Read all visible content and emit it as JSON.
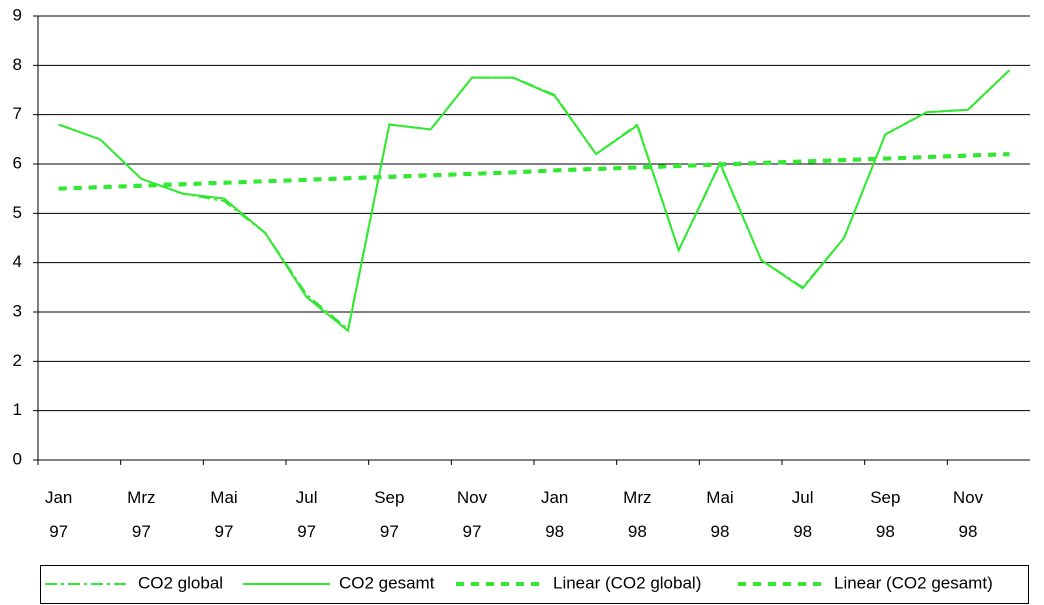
{
  "chart_data": {
    "type": "line",
    "categories": [
      "Jan 97",
      null,
      "Mrz 97",
      null,
      "Mai 97",
      null,
      "Jul 97",
      null,
      "Sep 97",
      null,
      "Nov 97",
      null,
      "Jan 98",
      null,
      "Mrz 98",
      null,
      "Mai 98",
      null,
      "Jul 98",
      null,
      "Sep 98",
      null,
      "Nov 98",
      null
    ],
    "series": [
      {
        "name": "CO2 global",
        "color": "#33e833",
        "style": "dashdot",
        "values": [
          6.8,
          6.5,
          5.7,
          5.4,
          5.25,
          4.6,
          3.35,
          2.65,
          6.8,
          6.7,
          7.75,
          7.75,
          7.4,
          6.2,
          6.8,
          4.25,
          6.0,
          4.05,
          3.5,
          4.5,
          6.6,
          7.05,
          7.1,
          7.9
        ]
      },
      {
        "name": "CO2 gesamt",
        "color": "#33e833",
        "style": "solid",
        "values": [
          6.8,
          6.5,
          5.7,
          5.4,
          5.3,
          4.6,
          3.3,
          2.62,
          6.8,
          6.7,
          7.75,
          7.75,
          7.38,
          6.2,
          6.78,
          4.25,
          6.02,
          4.05,
          3.48,
          4.5,
          6.6,
          7.05,
          7.1,
          7.9
        ]
      },
      {
        "name": "Linear (CO2 global)",
        "color": "#33e833",
        "style": "dashed",
        "values": [
          5.5,
          5.53,
          5.56,
          5.59,
          5.62,
          5.65,
          5.68,
          5.71,
          5.74,
          5.77,
          5.8,
          5.83,
          5.87,
          5.9,
          5.93,
          5.96,
          5.99,
          6.02,
          6.05,
          6.08,
          6.11,
          6.14,
          6.17,
          6.2
        ]
      },
      {
        "name": "Linear (CO2 gesamt)",
        "color": "#33e833",
        "style": "dashed",
        "values": [
          5.5,
          5.53,
          5.56,
          5.59,
          5.62,
          5.65,
          5.68,
          5.71,
          5.74,
          5.77,
          5.8,
          5.83,
          5.87,
          5.9,
          5.93,
          5.96,
          5.99,
          6.02,
          6.05,
          6.08,
          6.11,
          6.14,
          6.17,
          6.2
        ]
      }
    ],
    "ylim": [
      0,
      9
    ],
    "yticks": [
      0,
      1,
      2,
      3,
      4,
      5,
      6,
      7,
      8,
      9
    ],
    "grid": true,
    "legend": "bottom"
  }
}
